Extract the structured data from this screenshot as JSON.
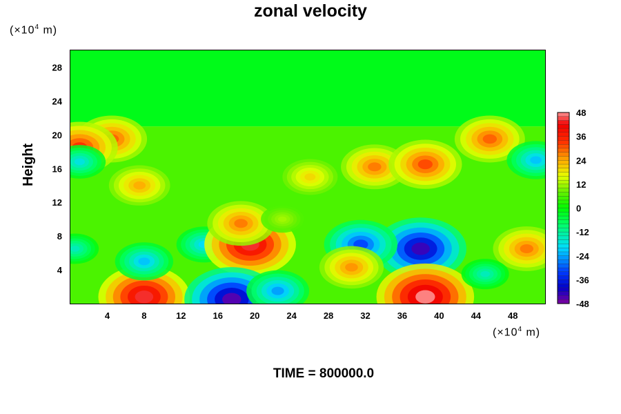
{
  "chart_data": {
    "type": "heatmap",
    "title": "zonal velocity",
    "ylabel": "Height",
    "x_unit_label": {
      "base": "(×10",
      "exp": "4",
      "rest": " m)"
    },
    "y_unit_label": {
      "base": "(×10",
      "exp": "4",
      "rest": " m)"
    },
    "xlim": [
      0,
      51.5
    ],
    "ylim": [
      0,
      30
    ],
    "x_ticks": [
      4,
      8,
      12,
      16,
      20,
      24,
      28,
      32,
      36,
      40,
      44,
      48
    ],
    "y_ticks": [
      4,
      8,
      12,
      16,
      20,
      24,
      28
    ],
    "colorbar": {
      "min": -48,
      "max": 48,
      "ticks": [
        48,
        36,
        24,
        12,
        0,
        -12,
        -24,
        -36,
        -48
      ]
    },
    "approx_features": [
      {
        "x": 0.5,
        "y": 6.5,
        "value": -15
      },
      {
        "x": 8,
        "y": 0.8,
        "value": 44
      },
      {
        "x": 8,
        "y": 5,
        "value": -22
      },
      {
        "x": 14.5,
        "y": 7,
        "value": -20
      },
      {
        "x": 19.5,
        "y": 7,
        "value": 44
      },
      {
        "x": 18.5,
        "y": 9.5,
        "value": 28
      },
      {
        "x": 17.5,
        "y": 0.5,
        "value": -46
      },
      {
        "x": 22.5,
        "y": 1.5,
        "value": -25
      },
      {
        "x": 38,
        "y": 6.5,
        "value": -44
      },
      {
        "x": 31.5,
        "y": 7,
        "value": -32
      },
      {
        "x": 38.5,
        "y": 0.8,
        "value": 48
      },
      {
        "x": 30.5,
        "y": 4.3,
        "value": 26
      },
      {
        "x": 49.5,
        "y": 6.5,
        "value": 28
      },
      {
        "x": 45,
        "y": 3.5,
        "value": -15
      },
      {
        "x": 33,
        "y": 16.2,
        "value": 28
      },
      {
        "x": 38.5,
        "y": 16.5,
        "value": 32
      },
      {
        "x": 4.5,
        "y": 19.5,
        "value": 30
      },
      {
        "x": 1,
        "y": 18.5,
        "value": 34
      },
      {
        "x": 45.5,
        "y": 19.5,
        "value": 30
      },
      {
        "x": 50.5,
        "y": 17,
        "value": -22
      },
      {
        "x": 1,
        "y": 16.8,
        "value": -18
      },
      {
        "x": 7.5,
        "y": 14,
        "value": 24
      },
      {
        "x": 26,
        "y": 15,
        "value": 20
      },
      {
        "x": 23,
        "y": 10,
        "value": 12
      }
    ],
    "upper_region": {
      "y_from": 21,
      "y_to": 30,
      "value": -2
    }
  },
  "footer": {
    "time_label": "TIME = 800000.0"
  }
}
